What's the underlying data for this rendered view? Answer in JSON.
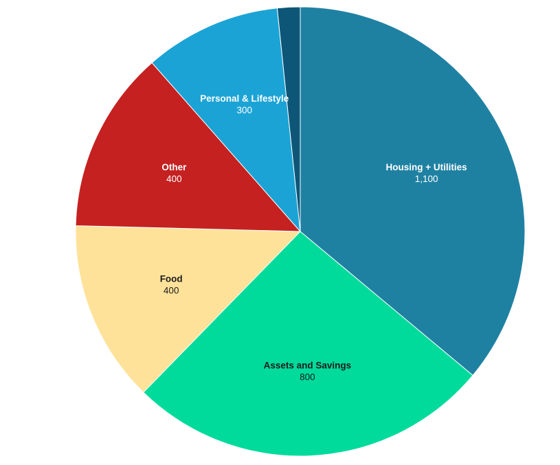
{
  "canvas": {
    "background": "#ffffff"
  },
  "chart_data": {
    "type": "pie",
    "title": "",
    "legend_position": "none",
    "start_angle_deg": 0,
    "direction": "clockwise",
    "total": 3050,
    "categories": [
      "Housing + Utilities",
      "Assets and Savings",
      "Food",
      "Other",
      "Personal & Lifestyle",
      ""
    ],
    "values": [
      1100,
      800,
      400,
      400,
      300,
      50
    ],
    "slices": [
      {
        "label": "Housing + Utilities",
        "value": 1100,
        "value_text": "1,100",
        "color": "#1F81A2",
        "label_color": "#ffffff",
        "show_label": true
      },
      {
        "label": "Assets and Savings",
        "value": 800,
        "value_text": "800",
        "color": "#00DB9C",
        "label_color": "#1b1b1b",
        "show_label": true
      },
      {
        "label": "Food",
        "value": 400,
        "value_text": "400",
        "color": "#FFE29A",
        "label_color": "#1b1b1b",
        "show_label": true
      },
      {
        "label": "Other",
        "value": 400,
        "value_text": "400",
        "color": "#C52121",
        "label_color": "#ffffff",
        "show_label": true
      },
      {
        "label": "Personal & Lifestyle",
        "value": 300,
        "value_text": "300",
        "color": "#1CA3D5",
        "label_color": "#ffffff",
        "show_label": true
      },
      {
        "label": "",
        "value": 50,
        "value_text": "50",
        "color": "#0D5678",
        "label_color": "#ffffff",
        "show_label": false
      }
    ]
  }
}
